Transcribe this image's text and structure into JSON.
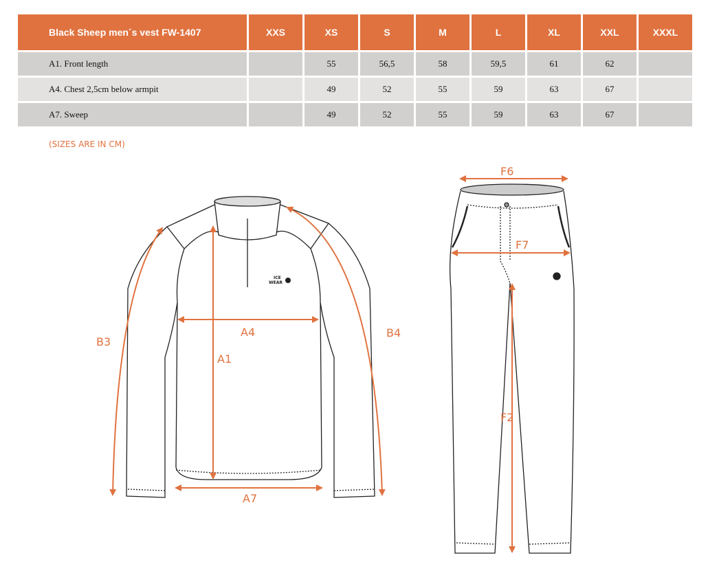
{
  "table": {
    "title": "Black Sheep men´s vest FW-1407",
    "sizes": [
      "XXS",
      "XS",
      "S",
      "M",
      "L",
      "XL",
      "XXL",
      "XXXL"
    ],
    "rows": [
      {
        "label": "A1. Front length",
        "values": [
          "",
          "55",
          "56,5",
          "58",
          "59,5",
          "61",
          "62",
          ""
        ]
      },
      {
        "label": "A4. Chest 2,5cm below armpit",
        "values": [
          "",
          "49",
          "52",
          "55",
          "59",
          "63",
          "67",
          ""
        ]
      },
      {
        "label": "A7. Sweep",
        "values": [
          "",
          "49",
          "52",
          "55",
          "59",
          "63",
          "67",
          ""
        ]
      }
    ]
  },
  "note": "(SIZES ARE IN CM)",
  "diagram": {
    "accent_color": "#E0723F",
    "jacket_labels": {
      "a1": "A1",
      "a4": "A4",
      "a7": "A7",
      "b3": "B3",
      "b4": "B4"
    },
    "pants_labels": {
      "f2": "F2",
      "f6": "F6",
      "f7": "F7"
    },
    "logo_text": "ICE WEAR"
  }
}
